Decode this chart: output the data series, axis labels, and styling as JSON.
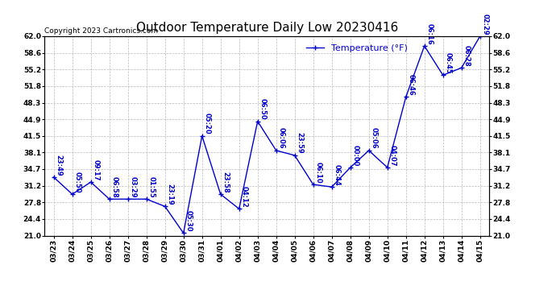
{
  "title": "Outdoor Temperature Daily Low 20230416",
  "copyright": "Copyright 2023 Cartronics.com",
  "legend_label": "Temperature (°F)",
  "dates": [
    "03/23",
    "03/24",
    "03/25",
    "03/26",
    "03/27",
    "03/28",
    "03/29",
    "03/30",
    "03/31",
    "04/01",
    "04/02",
    "04/03",
    "04/04",
    "04/05",
    "04/06",
    "04/07",
    "04/08",
    "04/09",
    "04/10",
    "04/11",
    "04/12",
    "04/13",
    "04/14",
    "04/15"
  ],
  "temps": [
    33.0,
    29.5,
    32.0,
    28.5,
    28.5,
    28.5,
    27.0,
    21.5,
    41.5,
    29.5,
    26.5,
    44.5,
    38.5,
    37.5,
    31.5,
    31.0,
    35.0,
    38.5,
    35.0,
    49.5,
    60.0,
    54.0,
    55.5,
    62.0
  ],
  "time_labels": [
    "23:49",
    "05:50",
    "09:17",
    "06:58",
    "03:29",
    "01:55",
    "23:19",
    "05:30",
    "05:20",
    "23:58",
    "04:12",
    "06:50",
    "06:06",
    "23:59",
    "06:10",
    "06:44",
    "00:00",
    "05:06",
    "04:07",
    "06:46",
    "06:16",
    "06:45",
    "06:28",
    "02:29"
  ],
  "line_color": "#0000cc",
  "marker": "+",
  "bg_color": "#ffffff",
  "grid_color": "#bbbbbb",
  "ylim": [
    21.0,
    62.0
  ],
  "yticks": [
    21.0,
    24.4,
    27.8,
    31.2,
    34.7,
    38.1,
    41.5,
    44.9,
    48.3,
    51.8,
    55.2,
    58.6,
    62.0
  ],
  "title_fontsize": 11,
  "label_fontsize": 6.5,
  "legend_fontsize": 8,
  "copyright_fontsize": 6.5,
  "annotation_fontsize": 6.0
}
